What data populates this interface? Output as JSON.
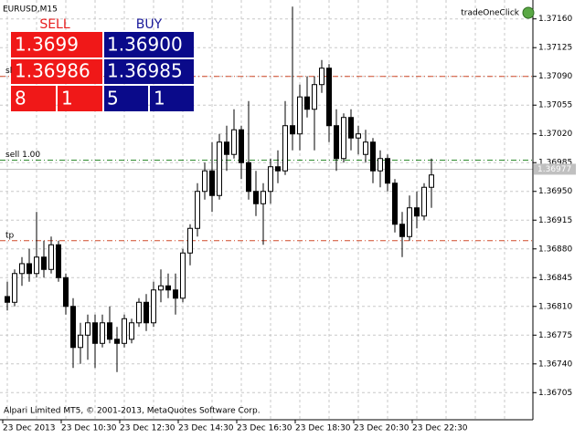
{
  "window": {
    "symbol": "EURUSD,M15",
    "expert": "tradeOneClick",
    "footer": "Alpari Limited MT5, © 2001-2013, MetaQuotes Software Corp."
  },
  "panel": {
    "sell_header": "SELL",
    "buy_header": "BUY",
    "sell_price": "1.3699",
    "buy_price": "1.36900",
    "bid": "1.36986",
    "ask": "1.36985",
    "sell_lots": "8",
    "sell_mult": "1",
    "buy_lots": "5",
    "buy_mult": "1"
  },
  "chart_data": {
    "type": "candlestick",
    "grid": true,
    "up_color": "#ffffff",
    "down_color": "#000000",
    "categories": [
      "23 Dec 2013",
      null,
      null,
      null,
      null,
      null,
      null,
      null,
      "23 Dec 10:30",
      null,
      null,
      null,
      null,
      null,
      null,
      null,
      "23 Dec 12:30",
      null,
      null,
      null,
      null,
      null,
      null,
      null,
      "23 Dec 14:30",
      null,
      null,
      null,
      null,
      null,
      null,
      null,
      "23 Dec 16:30",
      null,
      null,
      null,
      null,
      null,
      null,
      null,
      "23 Dec 18:30",
      null,
      null,
      null,
      null,
      null,
      null,
      null,
      "23 Dec 20:30",
      null,
      null,
      null,
      null,
      null,
      null,
      null,
      "23 Dec 22:30",
      null,
      null
    ],
    "open": [
      1.36822,
      1.36815,
      1.3685,
      1.36862,
      1.3685,
      1.3687,
      1.36855,
      1.36885,
      1.36845,
      1.3681,
      1.3676,
      1.36775,
      1.3679,
      1.36765,
      1.3679,
      1.3677,
      1.36765,
      1.3677,
      1.3679,
      1.36815,
      1.3679,
      1.3683,
      1.36835,
      1.3683,
      1.3682,
      1.36875,
      1.36905,
      1.3695,
      1.36975,
      1.36945,
      1.3701,
      1.36995,
      1.37025,
      1.36985,
      1.3695,
      1.36935,
      1.3695,
      1.3698,
      1.36975,
      1.3703,
      1.3702,
      1.37065,
      1.3705,
      1.3708,
      1.371,
      1.3703,
      1.3699,
      1.3704,
      1.37015,
      1.36995,
      1.3701,
      1.36975,
      1.3699,
      1.3696,
      1.3691,
      1.36895,
      1.3693,
      1.3692,
      1.36955
    ],
    "high": [
      1.3684,
      1.36855,
      1.3687,
      1.3688,
      1.36925,
      1.3689,
      1.36895,
      1.3689,
      1.3685,
      1.3682,
      1.3679,
      1.368,
      1.368,
      1.368,
      1.3681,
      1.36785,
      1.368,
      1.36795,
      1.3682,
      1.36825,
      1.3684,
      1.36855,
      1.3685,
      1.3685,
      1.3688,
      1.3691,
      1.3696,
      1.36985,
      1.3701,
      1.3702,
      1.3703,
      1.3705,
      1.3703,
      1.3706,
      1.36975,
      1.3696,
      1.3699,
      1.37,
      1.3706,
      1.37175,
      1.3708,
      1.3709,
      1.3709,
      1.3711,
      1.37105,
      1.3705,
      1.37045,
      1.3705,
      1.3703,
      1.37025,
      1.37015,
      1.37,
      1.36995,
      1.36965,
      1.36925,
      1.36945,
      1.3695,
      1.3696,
      1.3699
    ],
    "low": [
      1.36805,
      1.3681,
      1.36835,
      1.3684,
      1.36845,
      1.36845,
      1.3685,
      1.3684,
      1.368,
      1.36735,
      1.3674,
      1.36745,
      1.36735,
      1.3676,
      1.36765,
      1.3673,
      1.3676,
      1.36765,
      1.36785,
      1.3678,
      1.36785,
      1.36815,
      1.3682,
      1.368,
      1.36815,
      1.3686,
      1.36895,
      1.3694,
      1.36925,
      1.3694,
      1.36975,
      1.3699,
      1.36965,
      1.3694,
      1.3692,
      1.36885,
      1.36935,
      1.3696,
      1.3697,
      1.37,
      1.37,
      1.3704,
      1.37,
      1.3707,
      1.3701,
      1.36975,
      1.36985,
      1.37,
      1.36995,
      1.36985,
      1.3696,
      1.36955,
      1.3695,
      1.369,
      1.3687,
      1.3689,
      1.36905,
      1.36915,
      1.3693
    ],
    "close": [
      1.36815,
      1.3685,
      1.36862,
      1.3685,
      1.3687,
      1.36855,
      1.36885,
      1.36845,
      1.3681,
      1.3676,
      1.36775,
      1.3679,
      1.36765,
      1.3679,
      1.3677,
      1.36765,
      1.36795,
      1.3679,
      1.36815,
      1.3679,
      1.3683,
      1.36835,
      1.3683,
      1.3682,
      1.36875,
      1.36905,
      1.3695,
      1.36975,
      1.36945,
      1.3701,
      1.36995,
      1.37025,
      1.36985,
      1.3695,
      1.36935,
      1.3695,
      1.3698,
      1.36975,
      1.3703,
      1.3702,
      1.37065,
      1.3705,
      1.3708,
      1.371,
      1.3703,
      1.3699,
      1.3704,
      1.37015,
      1.3702,
      1.3701,
      1.36975,
      1.3699,
      1.3696,
      1.3691,
      1.36895,
      1.3693,
      1.3692,
      1.36955,
      1.3697
    ],
    "ylim": [
      1.36672,
      1.37183
    ],
    "yticks": [
      {
        "value": 1.3716,
        "label": "1.37160"
      },
      {
        "value": 1.37125,
        "label": "1.37125"
      },
      {
        "value": 1.3709,
        "label": "1.37090"
      },
      {
        "value": 1.37055,
        "label": "1.37055"
      },
      {
        "value": 1.3702,
        "label": "1.37020"
      },
      {
        "value": 1.36985,
        "label": "1.36985"
      },
      {
        "value": 1.3695,
        "label": "1.36950"
      },
      {
        "value": 1.36915,
        "label": "1.36915"
      },
      {
        "value": 1.3688,
        "label": "1.36880"
      },
      {
        "value": 1.36845,
        "label": "1.36845"
      },
      {
        "value": 1.3681,
        "label": "1.36810"
      },
      {
        "value": 1.36775,
        "label": "1.36775"
      },
      {
        "value": 1.3674,
        "label": "1.36740"
      },
      {
        "value": 1.36705,
        "label": "1.36705"
      }
    ],
    "levels": [
      {
        "label": "sl",
        "value": 1.3709,
        "color": "#d04a2a"
      },
      {
        "label": "sell 1.00",
        "value": 1.36988,
        "color": "#2e8b2e"
      },
      {
        "label": "tp",
        "value": 1.3689,
        "color": "#d04a2a"
      }
    ],
    "current_price": 1.36977
  }
}
